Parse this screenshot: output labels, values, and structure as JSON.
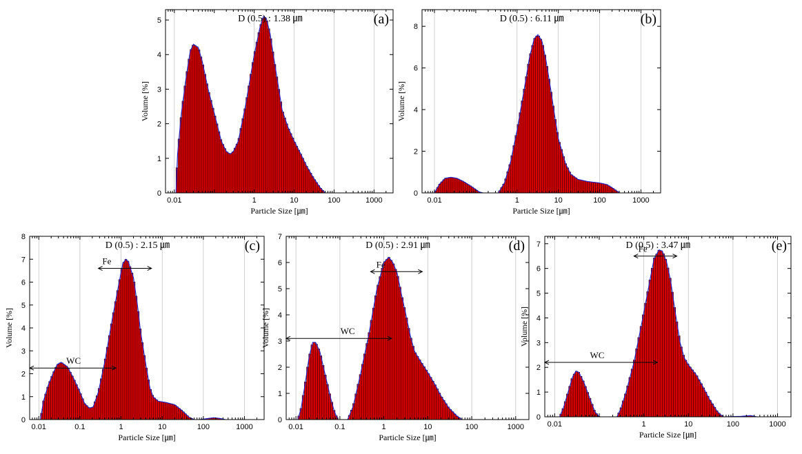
{
  "chart_data": [
    {
      "type": "bar",
      "tag": "(a)",
      "title": "D (0.5) : 1.38 ㎛",
      "xlabel": "Particle Size [㎛]",
      "ylabel": "Volume [%]",
      "xscale": "log",
      "xlim": [
        0.006,
        3000
      ],
      "ylim": [
        0,
        5.3
      ],
      "xticks": [
        {
          "v": 0.01,
          "label": "0.01"
        },
        {
          "v": 1,
          "label": "1"
        },
        {
          "v": 10,
          "label": "10"
        },
        {
          "v": 100,
          "label": "100"
        },
        {
          "v": 1000,
          "label": "1000"
        }
      ],
      "yticks": [
        0,
        1,
        2,
        3,
        4,
        5
      ],
      "grid": true,
      "points": [
        [
          0.011,
          0
        ],
        [
          0.012,
          1.1
        ],
        [
          0.015,
          2.3
        ],
        [
          0.02,
          3.4
        ],
        [
          0.025,
          4.1
        ],
        [
          0.03,
          4.3
        ],
        [
          0.04,
          4.2
        ],
        [
          0.05,
          3.8
        ],
        [
          0.07,
          3.0
        ],
        [
          0.1,
          2.3
        ],
        [
          0.15,
          1.5
        ],
        [
          0.2,
          1.2
        ],
        [
          0.25,
          1.12
        ],
        [
          0.3,
          1.2
        ],
        [
          0.4,
          1.5
        ],
        [
          0.6,
          2.5
        ],
        [
          1,
          4.0
        ],
        [
          1.4,
          4.8
        ],
        [
          1.7,
          5.1
        ],
        [
          2,
          5.05
        ],
        [
          2.5,
          4.6
        ],
        [
          3,
          4.0
        ],
        [
          4,
          3.1
        ],
        [
          5,
          2.4
        ],
        [
          7,
          1.9
        ],
        [
          10,
          1.5
        ],
        [
          15,
          1.1
        ],
        [
          20,
          0.8
        ],
        [
          30,
          0.45
        ],
        [
          45,
          0.15
        ],
        [
          60,
          0
        ]
      ],
      "annotations": []
    },
    {
      "type": "bar",
      "tag": "(b)",
      "title": "D (0.5) : 6.11 ㎛",
      "xlabel": "Particle Size [㎛]",
      "ylabel": "Volume [%]",
      "xscale": "log",
      "xlim": [
        0.005,
        3000
      ],
      "ylim": [
        0,
        8.8
      ],
      "xticks": [
        {
          "v": 0.01,
          "label": "0.01"
        },
        {
          "v": 1,
          "label": "1"
        },
        {
          "v": 10,
          "label": "10"
        },
        {
          "v": 100,
          "label": "100"
        },
        {
          "v": 1000,
          "label": "1000"
        }
      ],
      "yticks": [
        0,
        2,
        4,
        6,
        8
      ],
      "grid": true,
      "points": [
        [
          0.01,
          0
        ],
        [
          0.013,
          0.4
        ],
        [
          0.018,
          0.7
        ],
        [
          0.025,
          0.75
        ],
        [
          0.035,
          0.7
        ],
        [
          0.05,
          0.55
        ],
        [
          0.08,
          0.3
        ],
        [
          0.12,
          0.05
        ],
        [
          0.15,
          0
        ],
        [
          0.35,
          0
        ],
        [
          0.5,
          0.5
        ],
        [
          0.7,
          1.5
        ],
        [
          1,
          3.0
        ],
        [
          1.5,
          5.0
        ],
        [
          2,
          6.5
        ],
        [
          2.6,
          7.4
        ],
        [
          3.2,
          7.6
        ],
        [
          4,
          7.3
        ],
        [
          5,
          6.4
        ],
        [
          6.5,
          5.0
        ],
        [
          8,
          3.8
        ],
        [
          10,
          2.6
        ],
        [
          15,
          1.4
        ],
        [
          20,
          0.9
        ],
        [
          30,
          0.65
        ],
        [
          50,
          0.55
        ],
        [
          100,
          0.48
        ],
        [
          150,
          0.4
        ],
        [
          200,
          0.25
        ],
        [
          280,
          0.05
        ],
        [
          300,
          0
        ]
      ],
      "annotations": []
    },
    {
      "type": "bar",
      "tag": "(c)",
      "title": "D (0.5) : 2.15 ㎛",
      "xlabel": "Particle Size [㎛]",
      "ylabel": "Volume [%]",
      "xscale": "log",
      "xlim": [
        0.006,
        3000
      ],
      "ylim": [
        0,
        8
      ],
      "xticks": [
        {
          "v": 0.01,
          "label": "0.01"
        },
        {
          "v": 0.1,
          "label": "0.1"
        },
        {
          "v": 1,
          "label": "1"
        },
        {
          "v": 10,
          "label": "10"
        },
        {
          "v": 100,
          "label": "100"
        },
        {
          "v": 1000,
          "label": "1000"
        }
      ],
      "yticks": [
        0,
        1,
        2,
        3,
        4,
        5,
        6,
        7,
        8
      ],
      "grid": true,
      "points": [
        [
          0.011,
          0
        ],
        [
          0.013,
          0.8
        ],
        [
          0.017,
          1.5
        ],
        [
          0.022,
          2.0
        ],
        [
          0.028,
          2.4
        ],
        [
          0.035,
          2.5
        ],
        [
          0.05,
          2.3
        ],
        [
          0.07,
          1.8
        ],
        [
          0.1,
          1.2
        ],
        [
          0.13,
          0.7
        ],
        [
          0.17,
          0.5
        ],
        [
          0.21,
          0.55
        ],
        [
          0.28,
          1.2
        ],
        [
          0.4,
          2.5
        ],
        [
          0.6,
          4.3
        ],
        [
          0.9,
          6.0
        ],
        [
          1.1,
          6.8
        ],
        [
          1.3,
          7.0
        ],
        [
          1.5,
          6.9
        ],
        [
          2,
          6.2
        ],
        [
          2.5,
          5.0
        ],
        [
          3,
          3.8
        ],
        [
          4,
          2.4
        ],
        [
          5,
          1.4
        ],
        [
          6,
          1.0
        ],
        [
          8,
          0.8
        ],
        [
          12,
          0.75
        ],
        [
          20,
          0.65
        ],
        [
          30,
          0.4
        ],
        [
          45,
          0.1
        ],
        [
          60,
          0
        ],
        [
          80,
          0
        ],
        [
          120,
          0.04
        ],
        [
          180,
          0.08
        ],
        [
          250,
          0.05
        ],
        [
          350,
          0
        ]
      ],
      "annotations": [
        {
          "label": "WC",
          "y": 2.25,
          "from": 0.006,
          "to": 0.75,
          "label_x": 0.07
        },
        {
          "label": "Fe",
          "y": 6.6,
          "from": 0.28,
          "to": 5.5,
          "label_x": 0.45
        }
      ]
    },
    {
      "type": "bar",
      "tag": "(d)",
      "title": "D (0.5) : 2.91 ㎛",
      "xlabel": "Particle Size [㎛]",
      "ylabel": "Volume [%]",
      "xscale": "log",
      "xlim": [
        0.006,
        2000
      ],
      "ylim": [
        0,
        7
      ],
      "xticks": [
        {
          "v": 0.01,
          "label": "0.01"
        },
        {
          "v": 0.1,
          "label": "0.1"
        },
        {
          "v": 1,
          "label": "1"
        },
        {
          "v": 10,
          "label": "10"
        },
        {
          "v": 100,
          "label": "100"
        },
        {
          "v": 1000,
          "label": "1000"
        }
      ],
      "yticks": [
        0,
        1,
        2,
        3,
        4,
        5,
        6,
        7
      ],
      "grid": true,
      "points": [
        [
          0.011,
          0
        ],
        [
          0.013,
          0.4
        ],
        [
          0.016,
          1.3
        ],
        [
          0.02,
          2.4
        ],
        [
          0.024,
          2.95
        ],
        [
          0.028,
          2.95
        ],
        [
          0.035,
          2.6
        ],
        [
          0.045,
          1.8
        ],
        [
          0.06,
          0.9
        ],
        [
          0.075,
          0.3
        ],
        [
          0.09,
          0
        ],
        [
          0.15,
          0
        ],
        [
          0.2,
          0.5
        ],
        [
          0.3,
          1.8
        ],
        [
          0.45,
          3.2
        ],
        [
          0.7,
          5.0
        ],
        [
          1,
          6.0
        ],
        [
          1.3,
          6.2
        ],
        [
          1.6,
          6.0
        ],
        [
          2,
          5.6
        ],
        [
          2.5,
          4.8
        ],
        [
          3,
          4.2
        ],
        [
          4,
          3.2
        ],
        [
          5,
          2.6
        ],
        [
          7,
          2.2
        ],
        [
          10,
          1.8
        ],
        [
          15,
          1.3
        ],
        [
          20,
          0.9
        ],
        [
          30,
          0.45
        ],
        [
          45,
          0.15
        ],
        [
          60,
          0
        ],
        [
          1500,
          0
        ]
      ],
      "annotations": [
        {
          "label": "WC",
          "y": 3.1,
          "from": 0.006,
          "to": 1.5,
          "label_x": 0.15
        },
        {
          "label": "Fe",
          "y": 5.65,
          "from": 0.5,
          "to": 7.5,
          "label_x": 0.85
        }
      ]
    },
    {
      "type": "bar",
      "tag": "(e)",
      "title": "D (0.5) : 3.47 ㎛",
      "xlabel": "Particle Size [㎛]",
      "ylabel": "Volume [%]",
      "xscale": "log",
      "xlim": [
        0.006,
        2000
      ],
      "ylim": [
        0,
        7.3
      ],
      "xticks": [
        {
          "v": 0.01,
          "label": "0.01"
        },
        {
          "v": 1,
          "label": "1"
        },
        {
          "v": 10,
          "label": "10"
        },
        {
          "v": 100,
          "label": "100"
        },
        {
          "v": 1000,
          "label": "1000"
        }
      ],
      "yticks": [
        0,
        1,
        2,
        3,
        4,
        5,
        6,
        7
      ],
      "grid": true,
      "points": [
        [
          0.013,
          0
        ],
        [
          0.016,
          0.4
        ],
        [
          0.02,
          1.0
        ],
        [
          0.025,
          1.6
        ],
        [
          0.03,
          1.85
        ],
        [
          0.035,
          1.8
        ],
        [
          0.045,
          1.4
        ],
        [
          0.06,
          0.8
        ],
        [
          0.08,
          0.2
        ],
        [
          0.1,
          0
        ],
        [
          0.25,
          0
        ],
        [
          0.3,
          0.3
        ],
        [
          0.4,
          1.0
        ],
        [
          0.6,
          2.2
        ],
        [
          0.9,
          3.8
        ],
        [
          1.3,
          5.3
        ],
        [
          1.7,
          6.4
        ],
        [
          2.2,
          6.75
        ],
        [
          2.6,
          6.7
        ],
        [
          3.2,
          6.3
        ],
        [
          4,
          5.5
        ],
        [
          5,
          4.3
        ],
        [
          6.5,
          3.0
        ],
        [
          8,
          2.4
        ],
        [
          10,
          2.1
        ],
        [
          15,
          1.7
        ],
        [
          20,
          1.3
        ],
        [
          30,
          0.7
        ],
        [
          45,
          0.2
        ],
        [
          60,
          0
        ],
        [
          150,
          0.02
        ],
        [
          250,
          0.05
        ],
        [
          350,
          0
        ],
        [
          1500,
          0
        ]
      ],
      "annotations": [
        {
          "label": "WC",
          "y": 2.2,
          "from": 0.006,
          "to": 2.0,
          "label_x": 0.09
        },
        {
          "label": "Fe",
          "y": 6.5,
          "from": 0.6,
          "to": 5.5,
          "label_x": 0.95
        }
      ]
    }
  ]
}
